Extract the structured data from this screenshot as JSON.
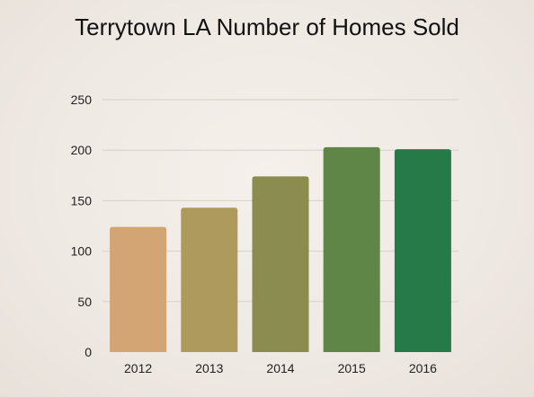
{
  "chart_data": {
    "type": "bar",
    "title": "Terrytown LA Number of Homes Sold",
    "xlabel": "",
    "ylabel": "",
    "categories": [
      "2012",
      "2013",
      "2014",
      "2015",
      "2016"
    ],
    "values": [
      124,
      143,
      174,
      203,
      201
    ],
    "ylim": [
      0,
      250
    ],
    "yticks": [
      "0",
      "50",
      "100",
      "150",
      "200",
      "250"
    ],
    "grid": true,
    "legend": "none",
    "bar_colors": [
      "#d4a574",
      "#ad9a5c",
      "#8a8d4f",
      "#5f8646",
      "#257a48"
    ],
    "grid_color": "#d6d0ca"
  }
}
